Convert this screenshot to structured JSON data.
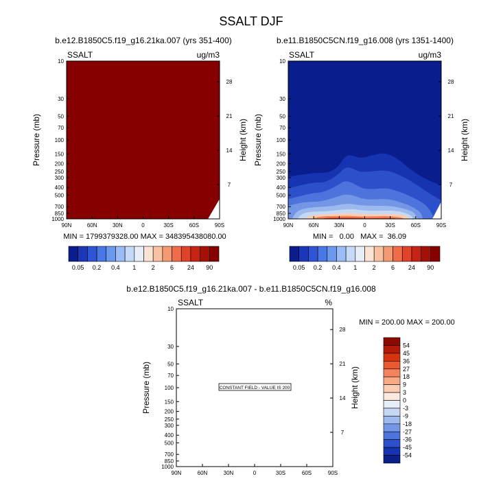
{
  "figure": {
    "title": "SSALT DJF"
  },
  "chart_data": [
    {
      "type": "heatmap",
      "title": "b.e12.B1850C5.f19_g16.21ka.007 (yrs 351-400)",
      "field_label": "SSALT",
      "units": "ug/m3",
      "ylabel": "Pressure (mb)",
      "ylabel_right": "Height (km)",
      "x_ticks": [
        "90N",
        "60N",
        "30N",
        "0",
        "30S",
        "60S",
        "90S"
      ],
      "y_ticks": [
        10,
        30,
        50,
        70,
        100,
        150,
        200,
        250,
        300,
        400,
        500,
        700,
        850,
        1000
      ],
      "y_scale": "log",
      "ylim": [
        10,
        1000
      ],
      "height_ticks": [
        28,
        21,
        14,
        7
      ],
      "stats": "MIN = 1799379328.00   MAX = 348395438080.00",
      "fill": "saturated at top color bin (>90) everywhere",
      "colorbar": {
        "labels": [
          "0.05",
          "0.2",
          "0.4",
          "1",
          "2",
          "6",
          "24",
          "90"
        ],
        "colors": [
          "#0a1d8c",
          "#1c36b8",
          "#2f55d6",
          "#4977e6",
          "#6a98ef",
          "#9abdf5",
          "#c4daf7",
          "#e8eef7",
          "#fbe4d4",
          "#f8c2a2",
          "#f49a72",
          "#ee6c47",
          "#e0432a",
          "#c62312",
          "#a21006",
          "#860000"
        ]
      }
    },
    {
      "type": "heatmap",
      "title": "b.e11.B1850C5CN.f19_g16.008 (yrs 1351-1400)",
      "field_label": "SSALT",
      "units": "ug/m3",
      "ylabel": "Pressure (mb)",
      "ylabel_right": "Height (km)",
      "x_ticks": [
        "90N",
        "60N",
        "30N",
        "0",
        "30S",
        "60S",
        "90S"
      ],
      "y_ticks": [
        10,
        30,
        50,
        70,
        100,
        150,
        200,
        250,
        300,
        400,
        500,
        700,
        850,
        1000
      ],
      "y_scale": "log",
      "ylim": [
        10,
        1000
      ],
      "height_ticks": [
        28,
        21,
        14,
        7
      ],
      "stats": "MIN =   0.00   MAX =  36.09",
      "fill": "low values aloft, values increasing toward the surface; max near 1000 mb in the subtropics",
      "colorbar": {
        "labels": [
          "0.05",
          "0.2",
          "0.4",
          "1",
          "2",
          "6",
          "24",
          "90"
        ],
        "colors": [
          "#0a1d8c",
          "#1c36b8",
          "#2f55d6",
          "#4977e6",
          "#6a98ef",
          "#9abdf5",
          "#c4daf7",
          "#e8eef7",
          "#fbe4d4",
          "#f8c2a2",
          "#f49a72",
          "#ee6c47",
          "#e0432a",
          "#c62312",
          "#a21006",
          "#860000"
        ]
      }
    },
    {
      "type": "heatmap",
      "title": "b.e12.B1850C5.f19_g16.21ka.007 - b.e11.B1850C5CN.f19_g16.008",
      "field_label": "SSALT",
      "units": "%",
      "ylabel": "Pressure (mb)",
      "ylabel_right": "Height (km)",
      "x_ticks": [
        "90N",
        "60N",
        "30N",
        "0",
        "30S",
        "60S",
        "90S"
      ],
      "y_ticks": [
        10,
        30,
        50,
        70,
        100,
        150,
        200,
        250,
        300,
        400,
        500,
        700,
        850,
        1000
      ],
      "y_scale": "log",
      "ylim": [
        10,
        1000
      ],
      "height_ticks": [
        28,
        21,
        14,
        7
      ],
      "stats": "MIN = 200.00  MAX = 200.00",
      "annotation": "CONSTANT FIELD - VALUE IS 200",
      "colorbar": {
        "labels": [
          "54",
          "45",
          "36",
          "27",
          "18",
          "9",
          "3",
          "0",
          "-3",
          "-9",
          "-18",
          "-27",
          "-36",
          "-45",
          "-54"
        ],
        "colors": [
          "#8c0a02",
          "#b31b08",
          "#d6340f",
          "#eb5a2e",
          "#f5835b",
          "#f8aa86",
          "#fbcdb3",
          "#fde9dd",
          "#e6eefa",
          "#c7d8f4",
          "#9dbaee",
          "#7397e6",
          "#4d73dc",
          "#2c4fcc",
          "#1634b2",
          "#0b1f8a"
        ]
      }
    }
  ]
}
